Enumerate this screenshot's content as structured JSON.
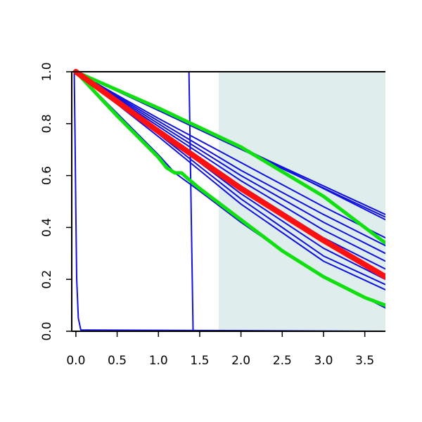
{
  "chart_data": {
    "type": "line",
    "title": "",
    "xlabel": "",
    "ylabel": "",
    "xlim": [
      -0.05,
      3.75
    ],
    "ylim": [
      0,
      1
    ],
    "grid": false,
    "x_ticks": [
      0.0,
      0.5,
      1.0,
      1.5,
      2.0,
      2.5,
      3.0,
      3.5
    ],
    "x_tick_labels": [
      "0.0",
      "0.5",
      "1.0",
      "1.5",
      "2.0",
      "2.5",
      "3.0",
      "3.5"
    ],
    "y_ticks": [
      0.0,
      0.2,
      0.4,
      0.6,
      0.8,
      1.0
    ],
    "y_tick_labels": [
      "0.0",
      "0.2",
      "0.4",
      "0.6",
      "0.8",
      "1.0"
    ],
    "shaded_region": {
      "x": [
        1.73,
        3.75
      ],
      "color": "#e0eded"
    },
    "colors": {
      "blue": "#1010e0",
      "red": "#ff1010",
      "green": "#10e010",
      "axis": "#000000"
    },
    "series": [
      {
        "color": "blue",
        "width": 2,
        "points": [
          [
            0.0,
            1.0
          ],
          [
            3.75,
            0.45
          ]
        ]
      },
      {
        "color": "blue",
        "width": 2,
        "points": [
          [
            0.0,
            1.0
          ],
          [
            3.75,
            0.44
          ]
        ]
      },
      {
        "color": "blue",
        "width": 2,
        "points": [
          [
            0.0,
            1.0
          ],
          [
            1.0,
            0.86
          ],
          [
            2.0,
            0.71
          ],
          [
            3.0,
            0.55
          ],
          [
            3.75,
            0.43
          ]
        ]
      },
      {
        "color": "blue",
        "width": 2,
        "points": [
          [
            0.0,
            1.0
          ],
          [
            1.0,
            0.82
          ],
          [
            2.0,
            0.65
          ],
          [
            3.0,
            0.48
          ],
          [
            3.75,
            0.36
          ]
        ]
      },
      {
        "color": "blue",
        "width": 2,
        "points": [
          [
            0.0,
            1.0
          ],
          [
            1.0,
            0.81
          ],
          [
            2.0,
            0.62
          ],
          [
            3.0,
            0.45
          ],
          [
            3.75,
            0.33
          ]
        ]
      },
      {
        "color": "blue",
        "width": 2,
        "points": [
          [
            0.0,
            1.0
          ],
          [
            1.0,
            0.8
          ],
          [
            2.0,
            0.6
          ],
          [
            3.0,
            0.42
          ],
          [
            3.75,
            0.3
          ]
        ]
      },
      {
        "color": "blue",
        "width": 2,
        "points": [
          [
            0.0,
            1.0
          ],
          [
            1.0,
            0.79
          ],
          [
            2.0,
            0.58
          ],
          [
            3.0,
            0.39
          ],
          [
            3.75,
            0.27
          ]
        ]
      },
      {
        "color": "blue",
        "width": 2,
        "points": [
          [
            0.0,
            1.0
          ],
          [
            1.0,
            0.78
          ],
          [
            2.0,
            0.56
          ],
          [
            3.0,
            0.36
          ],
          [
            3.75,
            0.24
          ]
        ]
      },
      {
        "color": "blue",
        "width": 2,
        "points": [
          [
            0.0,
            1.0
          ],
          [
            1.0,
            0.77
          ],
          [
            2.0,
            0.53
          ],
          [
            3.0,
            0.32
          ],
          [
            3.75,
            0.2
          ]
        ]
      },
      {
        "color": "blue",
        "width": 2,
        "points": [
          [
            0.0,
            1.0
          ],
          [
            1.0,
            0.76
          ],
          [
            2.0,
            0.51
          ],
          [
            3.0,
            0.29
          ],
          [
            3.75,
            0.18
          ]
        ]
      },
      {
        "color": "blue",
        "width": 2,
        "points": [
          [
            0.0,
            1.0
          ],
          [
            1.0,
            0.75
          ],
          [
            2.0,
            0.49
          ],
          [
            3.0,
            0.27
          ],
          [
            3.75,
            0.16
          ]
        ]
      },
      {
        "color": "blue",
        "width": 2,
        "points": [
          [
            0.0,
            1.0
          ],
          [
            0.5,
            0.84
          ],
          [
            1.0,
            0.68
          ],
          [
            1.2,
            0.61
          ],
          [
            1.5,
            0.54
          ],
          [
            2.0,
            0.42
          ],
          [
            2.5,
            0.31
          ],
          [
            3.0,
            0.21
          ],
          [
            3.5,
            0.13
          ],
          [
            3.75,
            0.09
          ]
        ]
      },
      {
        "color": "blue",
        "width": 2,
        "points": [
          [
            -0.02,
            1.0
          ],
          [
            -0.01,
            0.75
          ],
          [
            0.0,
            0.45
          ],
          [
            0.01,
            0.2
          ],
          [
            0.03,
            0.05
          ],
          [
            0.06,
            0.005
          ],
          [
            3.75,
            0.0
          ]
        ]
      },
      {
        "color": "blue",
        "width": 2,
        "points": [
          [
            0.0,
            1.0
          ],
          [
            1.37,
            1.0
          ],
          [
            1.395,
            0.5
          ],
          [
            1.42,
            0.0
          ],
          [
            3.75,
            0.0
          ]
        ]
      },
      {
        "color": "green",
        "width": 5,
        "points": [
          [
            0.0,
            1.0
          ],
          [
            1.0,
            0.86
          ],
          [
            2.0,
            0.71
          ],
          [
            3.0,
            0.52
          ],
          [
            3.75,
            0.34
          ]
        ]
      },
      {
        "color": "green",
        "width": 5,
        "points": [
          [
            0.0,
            1.0
          ],
          [
            0.5,
            0.83
          ],
          [
            1.0,
            0.67
          ],
          [
            1.1,
            0.63
          ],
          [
            1.2,
            0.61
          ],
          [
            1.28,
            0.61
          ],
          [
            1.35,
            0.59
          ],
          [
            1.5,
            0.55
          ],
          [
            2.0,
            0.43
          ],
          [
            2.5,
            0.31
          ],
          [
            3.0,
            0.21
          ],
          [
            3.5,
            0.13
          ],
          [
            3.75,
            0.1
          ]
        ]
      },
      {
        "color": "red",
        "width": 8,
        "points": [
          [
            0.0,
            1.0
          ],
          [
            1.0,
            0.77
          ],
          [
            2.0,
            0.55
          ],
          [
            3.0,
            0.35
          ],
          [
            3.75,
            0.21
          ]
        ]
      }
    ]
  }
}
